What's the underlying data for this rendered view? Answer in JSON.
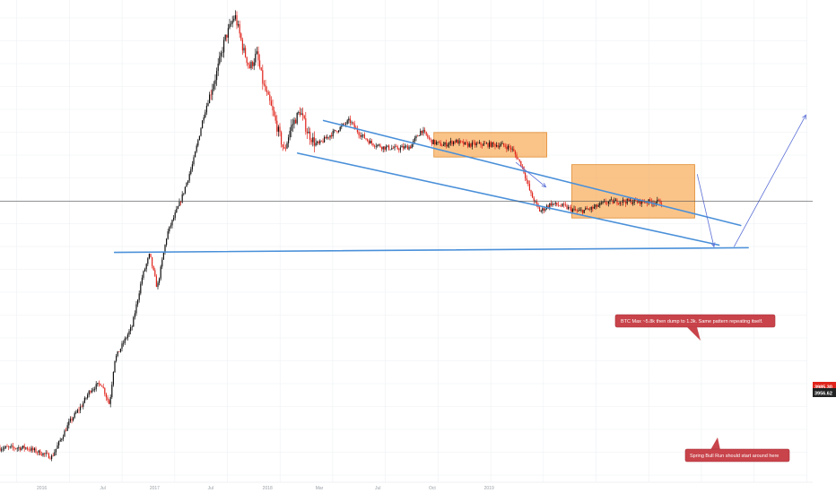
{
  "colors": {
    "background": "#ffffff",
    "grid": "#eef0f3",
    "trendline": "#4a90d9",
    "candle_up": "#111111",
    "candle_down": "#e0241b",
    "box_fill": "#f7a54a",
    "box_stroke": "#e08a2e",
    "arrow": "#5b6fd6",
    "callout_fill": "#c8434a",
    "callout_stroke": "#a8323a",
    "price_label": "#e0241b",
    "price_label_dark": "#222222",
    "crosshair": "#555555",
    "axis_text": "#9aa0a6"
  },
  "price_labels": {
    "current": "3985.30",
    "second": "3956.62"
  },
  "annotations": {
    "callout_1": "BTC Max ~5.8k then dump to 1.3k. Same pattern repeating itself.",
    "callout_2": "Spring Bull Run should start around here"
  },
  "chart_data": {
    "type": "candlestick",
    "title": "",
    "xlabel": "",
    "ylabel": "",
    "x_tick_labels": [
      "2016",
      "Jul",
      "2017",
      "Jul",
      "2018",
      "Mar",
      "Jul",
      "Oct",
      "2019"
    ],
    "y_scale": "log",
    "grid": true,
    "series": [
      {
        "points": [
          [
            0.0,
            502.0
          ],
          [
            0.031,
            503.3
          ],
          [
            0.062,
            465.7
          ],
          [
            0.083,
            622.7
          ],
          [
            0.098,
            719.7
          ],
          [
            0.108,
            816.7
          ],
          [
            0.121,
            867.7
          ],
          [
            0.131,
            722.2
          ],
          [
            0.137,
            1052.4
          ],
          [
            0.158,
            1394.4
          ],
          [
            0.17,
            2104.9
          ],
          [
            0.179,
            2547.2
          ],
          [
            0.188,
            1919.1
          ],
          [
            0.2,
            3031.3
          ],
          [
            0.217,
            4064.9
          ],
          [
            0.231,
            5520.5
          ],
          [
            0.244,
            8282.0
          ],
          [
            0.259,
            11640.2
          ],
          [
            0.269,
            15549.3
          ],
          [
            0.281,
            18948.8
          ],
          [
            0.286,
            16474.1
          ],
          [
            0.291,
            14210.7
          ],
          [
            0.299,
            12203.0
          ],
          [
            0.307,
            13734.5
          ],
          [
            0.315,
            10561.0
          ],
          [
            0.323,
            9031.8
          ],
          [
            0.333,
            7159.9
          ],
          [
            0.34,
            6043.1
          ],
          [
            0.348,
            7418.9
          ],
          [
            0.359,
            8498.1
          ],
          [
            0.368,
            7091.3
          ],
          [
            0.379,
            6347.0
          ],
          [
            0.393,
            6880.4
          ],
          [
            0.405,
            7309.1
          ],
          [
            0.418,
            7840.5
          ],
          [
            0.43,
            7018.8
          ],
          [
            0.444,
            6496.6
          ],
          [
            0.459,
            6256.3
          ],
          [
            0.475,
            6195.4
          ],
          [
            0.491,
            6304.4
          ],
          [
            0.504,
            7251.7
          ],
          [
            0.516,
            6570.4
          ],
          [
            0.53,
            6374.5
          ],
          [
            0.544,
            6599.0
          ],
          [
            0.558,
            6394.9
          ],
          [
            0.573,
            6425.4
          ],
          [
            0.586,
            6415.2
          ],
          [
            0.601,
            6374.5
          ],
          [
            0.612,
            6196.6
          ],
          [
            0.625,
            5312.5
          ],
          [
            0.635,
            4217.3
          ],
          [
            0.646,
            3654.0
          ],
          [
            0.659,
            3906.4
          ],
          [
            0.674,
            3815.2
          ],
          [
            0.691,
            3646.6
          ],
          [
            0.709,
            3755.9
          ],
          [
            0.724,
            3941.0
          ],
          [
            0.74,
            3985.3
          ],
          [
            0.793,
            3956.6
          ]
        ]
      }
    ],
    "trendlines": [
      [
        [
          0.387,
          7840.5
        ],
        [
          0.886,
          3250.2
        ]
      ],
      [
        [
          0.356,
          5963.6
        ],
        [
          0.86,
          2757.1
        ]
      ],
      [
        [
          0.137,
          2592.8
        ],
        [
          0.895,
          2695.9
        ]
      ]
    ],
    "boxes": [
      [
        [
          0.519,
          7091.3
        ],
        [
          0.654,
          5773.1
        ]
      ],
      [
        [
          0.684,
          5415.7
        ],
        [
          0.831,
          3460.1
        ]
      ]
    ],
    "arrows": [
      [
        [
          0.617,
          5520.5
        ],
        [
          0.653,
          4486.1
        ]
      ],
      [
        [
          0.834,
          4998.1
        ],
        [
          0.854,
          2718.6
        ]
      ],
      [
        [
          0.878,
          2718.6
        ],
        [
          0.964,
          8211.8
        ]
      ]
    ],
    "crosshair_price": 3985.3
  }
}
